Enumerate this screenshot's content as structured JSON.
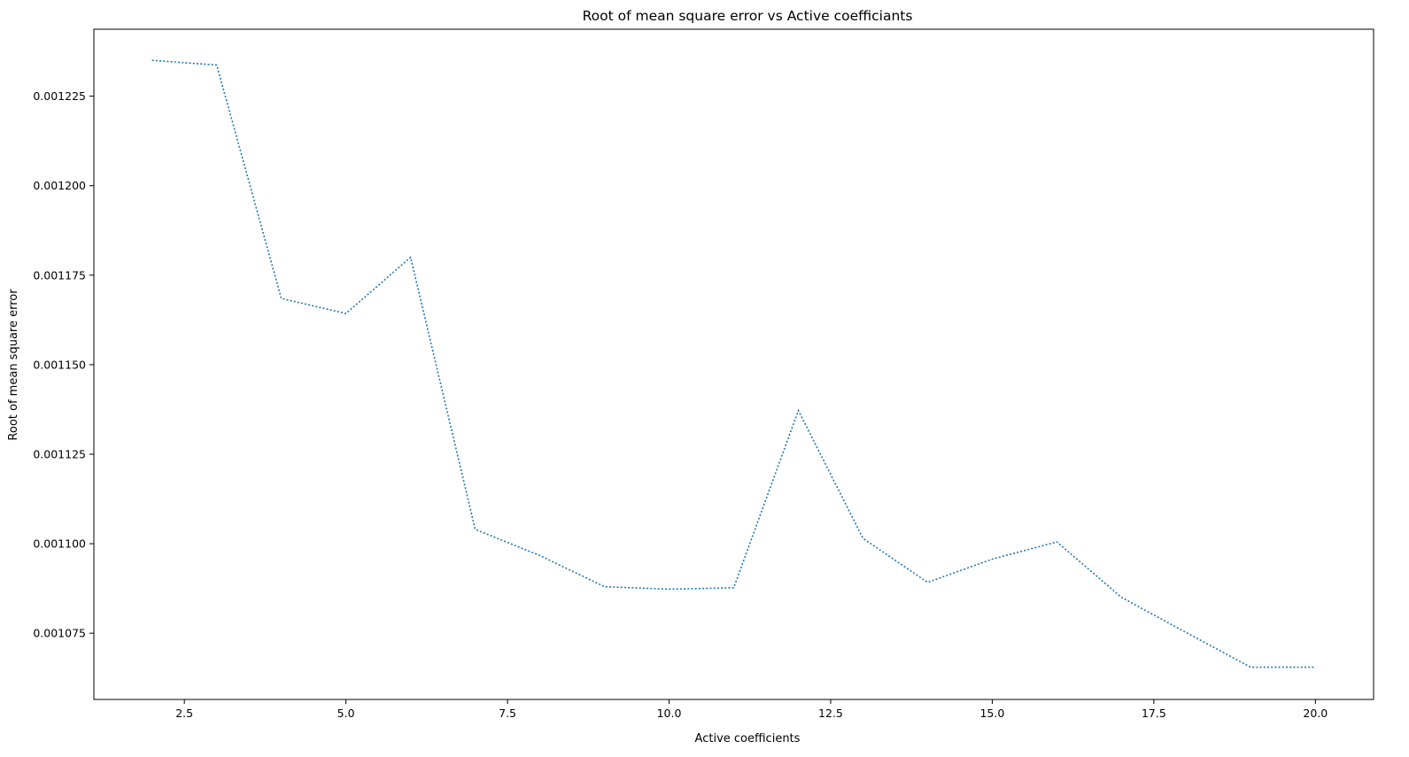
{
  "chart_data": {
    "type": "line",
    "title": "Root of mean square error vs Active coefficiants",
    "xlabel": "Active coefficients",
    "ylabel": "Root of mean square error",
    "xlim": [
      1.1,
      20.9
    ],
    "ylim": [
      0.0010565,
      0.0012437
    ],
    "xticks": [
      2.5,
      5.0,
      7.5,
      10.0,
      12.5,
      15.0,
      17.5,
      20.0
    ],
    "xtick_labels": [
      "2.5",
      "5.0",
      "7.5",
      "10.0",
      "12.5",
      "15.0",
      "17.5",
      "20.0"
    ],
    "yticks": [
      0.001075,
      0.0011,
      0.001125,
      0.00115,
      0.001175,
      0.0012,
      0.001225
    ],
    "ytick_labels": [
      "0.001075",
      "0.001100",
      "0.001125",
      "0.001150",
      "0.001175",
      "0.001200",
      "0.001225"
    ],
    "grid": false,
    "series": [
      {
        "line_style": "dotted",
        "color": "#1f77b4",
        "x": [
          2,
          3,
          4,
          5,
          6,
          7,
          8,
          9,
          10,
          11,
          12,
          13,
          14,
          15,
          16,
          17,
          18,
          19,
          20
        ],
        "y": [
          0.001235,
          0.0012337,
          0.0011685,
          0.0011643,
          0.00118,
          0.001104,
          0.0010967,
          0.001088,
          0.0010873,
          0.0010877,
          0.0011372,
          0.0011015,
          0.0010892,
          0.0010957,
          0.0011005,
          0.001085,
          0.0010752,
          0.0010655,
          0.0010655
        ]
      }
    ]
  }
}
